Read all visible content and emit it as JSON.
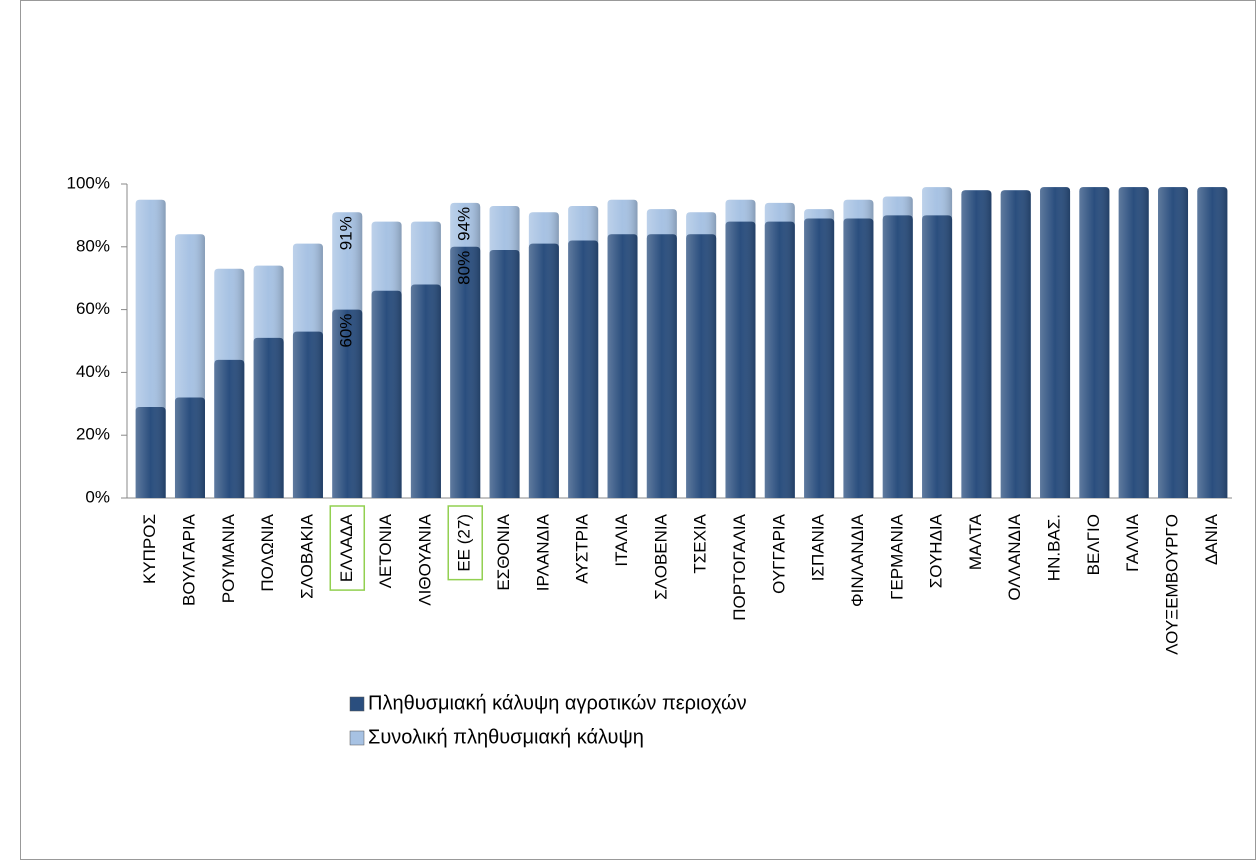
{
  "chart_data": {
    "type": "bar",
    "overlap": true,
    "categories": [
      "ΚΥΠΡΟΣ",
      "ΒΟΥΛΓΑΡΙΑ",
      "ΡΟΥΜΑΝΙΑ",
      "ΠΟΛΩΝΙΑ",
      "ΣΛΟΒΑΚΙΑ",
      "ΕΛΛΑΔΑ",
      "ΛΕΤΟΝΙΑ",
      "ΛΙΘΟΥΑΝΙΑ",
      "ΕΕ (27)",
      "ΕΣΘΟΝΙΑ",
      "ΙΡΛΑΝΔΙΑ",
      "ΑΥΣΤΡΙΑ",
      "ΙΤΑΛΙΑ",
      "ΣΛΟΒΕΝΙΑ",
      "ΤΣΕΧΙΑ",
      "ΠΟΡΤΟΓΑΛΙΑ",
      "ΟΥΓΓΑΡΙΑ",
      "ΙΣΠΑΝΙΑ",
      "ΦΙΝΛΑΝΔΙΑ",
      "ΓΕΡΜΑΝΙΑ",
      "ΣΟΥΗΔΙΑ",
      "ΜΑΛΤΑ",
      "ΟΛΛΑΝΔΙΑ",
      "ΗΝ.ΒΑΣ.",
      "ΒΕΛΓΙΟ",
      "ΓΑΛΛΙΑ",
      "ΛΟΥΞΕΜΒΟΥΡΓΟ",
      "ΔΑΝΙΑ"
    ],
    "series": [
      {
        "name": "Συνολική πληθυσμιακή κάλυψη",
        "color": "#a7c2e3",
        "values": [
          95,
          84,
          73,
          74,
          81,
          91,
          88,
          88,
          94,
          93,
          91,
          93,
          95,
          92,
          91,
          95,
          94,
          92,
          95,
          96,
          99,
          98,
          98,
          99,
          99,
          99,
          99,
          99
        ],
        "value_labels": [
          null,
          null,
          null,
          null,
          null,
          "91%",
          null,
          null,
          "94%",
          null,
          null,
          null,
          null,
          null,
          null,
          null,
          null,
          null,
          null,
          null,
          null,
          null,
          null,
          null,
          null,
          null,
          null,
          null
        ]
      },
      {
        "name": "Πληθυσμιακή κάλυψη αγροτικών περιοχών",
        "color": "#2a4e7e",
        "values": [
          29,
          32,
          44,
          51,
          53,
          60,
          66,
          68,
          80,
          79,
          81,
          82,
          84,
          84,
          84,
          88,
          88,
          89,
          89,
          90,
          90,
          98,
          98,
          99,
          99,
          99,
          99,
          99
        ],
        "value_labels": [
          null,
          null,
          null,
          null,
          null,
          "60%",
          null,
          null,
          "80%",
          null,
          null,
          null,
          null,
          null,
          null,
          null,
          null,
          null,
          null,
          null,
          null,
          null,
          null,
          null,
          null,
          null,
          null,
          null
        ]
      }
    ],
    "legend_order": [
      1,
      0
    ],
    "highlight_categories": [
      5,
      8
    ],
    "ylim": [
      0,
      100
    ],
    "yticks": [
      {
        "value": 0,
        "label": "0%"
      },
      {
        "value": 20,
        "label": "20%"
      },
      {
        "value": 40,
        "label": "40%"
      },
      {
        "value": 60,
        "label": "60%"
      },
      {
        "value": 80,
        "label": "80%"
      },
      {
        "value": 100,
        "label": "100%"
      }
    ]
  }
}
